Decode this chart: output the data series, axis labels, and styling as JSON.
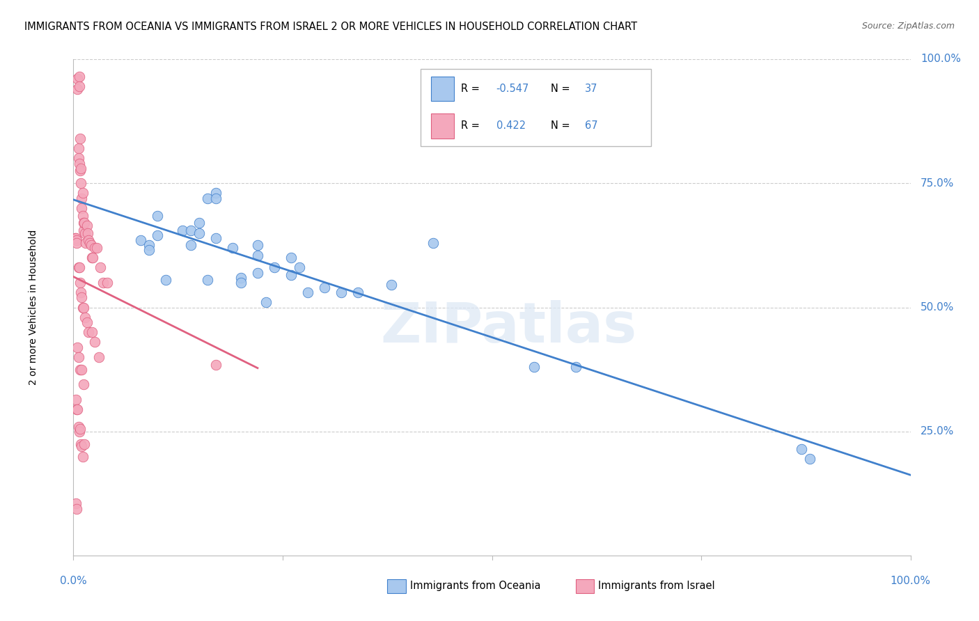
{
  "title": "IMMIGRANTS FROM OCEANIA VS IMMIGRANTS FROM ISRAEL 2 OR MORE VEHICLES IN HOUSEHOLD CORRELATION CHART",
  "source": "Source: ZipAtlas.com",
  "ylabel": "2 or more Vehicles in Household",
  "legend_blue_R": "-0.547",
  "legend_blue_N": "37",
  "legend_pink_R": "0.422",
  "legend_pink_N": "67",
  "legend_labels": [
    "Immigrants from Oceania",
    "Immigrants from Israel"
  ],
  "blue_color": "#A8C8EE",
  "pink_color": "#F4A8BC",
  "blue_line_color": "#4080CC",
  "pink_line_color": "#E06080",
  "watermark_text": "ZIPatlas",
  "blue_points_x": [
    0.08,
    0.1,
    0.1,
    0.13,
    0.14,
    0.15,
    0.16,
    0.17,
    0.17,
    0.19,
    0.2,
    0.22,
    0.22,
    0.24,
    0.26,
    0.26,
    0.28,
    0.14,
    0.09,
    0.15,
    0.17,
    0.22,
    0.27,
    0.09,
    0.11,
    0.16,
    0.3,
    0.23,
    0.38,
    0.43,
    0.6,
    0.55,
    0.87,
    0.88,
    0.32,
    0.34,
    0.2
  ],
  "blue_points_y": [
    0.635,
    0.645,
    0.685,
    0.655,
    0.655,
    0.67,
    0.72,
    0.73,
    0.64,
    0.62,
    0.56,
    0.57,
    0.605,
    0.58,
    0.565,
    0.6,
    0.53,
    0.625,
    0.625,
    0.65,
    0.72,
    0.625,
    0.58,
    0.615,
    0.555,
    0.555,
    0.54,
    0.51,
    0.545,
    0.63,
    0.38,
    0.38,
    0.215,
    0.195,
    0.53,
    0.53,
    0.55
  ],
  "pink_points_x": [
    0.002,
    0.003,
    0.004,
    0.004,
    0.005,
    0.005,
    0.006,
    0.006,
    0.007,
    0.007,
    0.007,
    0.008,
    0.008,
    0.009,
    0.009,
    0.01,
    0.01,
    0.011,
    0.011,
    0.012,
    0.012,
    0.013,
    0.014,
    0.015,
    0.016,
    0.017,
    0.018,
    0.02,
    0.021,
    0.022,
    0.023,
    0.025,
    0.028,
    0.032,
    0.035,
    0.04,
    0.006,
    0.007,
    0.008,
    0.009,
    0.01,
    0.011,
    0.012,
    0.014,
    0.016,
    0.018,
    0.022,
    0.025,
    0.03,
    0.005,
    0.006,
    0.008,
    0.01,
    0.012,
    0.003,
    0.004,
    0.005,
    0.006,
    0.007,
    0.008,
    0.009,
    0.01,
    0.011,
    0.013,
    0.17,
    0.003,
    0.004
  ],
  "pink_points_y": [
    0.64,
    0.64,
    0.635,
    0.63,
    0.96,
    0.94,
    0.82,
    0.8,
    0.965,
    0.945,
    0.79,
    0.84,
    0.775,
    0.78,
    0.75,
    0.72,
    0.7,
    0.73,
    0.685,
    0.655,
    0.67,
    0.67,
    0.65,
    0.63,
    0.665,
    0.65,
    0.635,
    0.63,
    0.625,
    0.6,
    0.6,
    0.62,
    0.62,
    0.58,
    0.55,
    0.55,
    0.58,
    0.58,
    0.55,
    0.53,
    0.52,
    0.5,
    0.5,
    0.48,
    0.47,
    0.45,
    0.45,
    0.43,
    0.4,
    0.42,
    0.4,
    0.375,
    0.375,
    0.345,
    0.315,
    0.295,
    0.295,
    0.26,
    0.25,
    0.255,
    0.225,
    0.22,
    0.2,
    0.225,
    0.385,
    0.105,
    0.095
  ],
  "xlim": [
    0.0,
    1.0
  ],
  "ylim": [
    0.0,
    1.0
  ],
  "blue_line_x0": 0.0,
  "blue_line_x1": 1.0,
  "pink_line_x0": 0.0,
  "pink_line_x1": 0.22,
  "ylabel_right_labels": [
    "100.0%",
    "75.0%",
    "50.0%",
    "25.0%"
  ],
  "ylabel_right_positions": [
    1.0,
    0.75,
    0.5,
    0.25
  ],
  "label_color": "#4080CC",
  "background_color": "#FFFFFF",
  "grid_color": "#CCCCCC"
}
